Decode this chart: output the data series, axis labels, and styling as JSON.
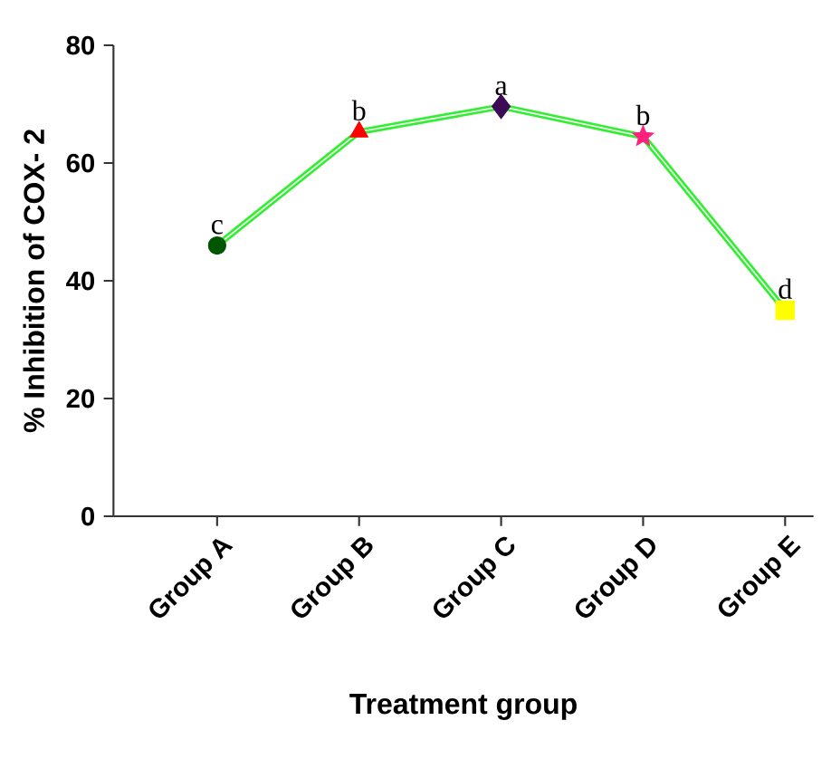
{
  "chart_data": {
    "type": "line",
    "xlabel": "Treatment group",
    "ylabel": "% Inhibition of COX- 2",
    "categories": [
      "Group A",
      "Group B",
      "Group C",
      "Group D",
      "Group E"
    ],
    "series": [
      {
        "type": "line",
        "color": "#33ee33",
        "values": [
          46,
          65.3,
          69.6,
          64.5,
          35
        ]
      },
      {
        "type": "scatter",
        "marker": "circle",
        "color": "#005500",
        "values": [
          46,
          null,
          null,
          null,
          null
        ]
      },
      {
        "type": "scatter",
        "marker": "triangle",
        "color": "#ff0000",
        "values": [
          null,
          65.3,
          null,
          null,
          null
        ]
      },
      {
        "type": "scatter",
        "marker": "diamond",
        "color": "#3d0a55",
        "values": [
          null,
          null,
          69.6,
          null,
          null
        ]
      },
      {
        "type": "scatter",
        "marker": "star",
        "color": "#ff1f7f",
        "values": [
          null,
          null,
          null,
          64.5,
          null
        ]
      },
      {
        "type": "scatter",
        "marker": "square",
        "color": "#ffff00",
        "values": [
          null,
          null,
          null,
          null,
          35
        ]
      }
    ],
    "ylim": [
      0,
      80
    ],
    "yticks": [
      0,
      20,
      40,
      60,
      80
    ],
    "grid": false,
    "annotations": [
      {
        "text": "c",
        "x": "Group A",
        "y": 46
      },
      {
        "text": "b",
        "x": "Group B",
        "y": 65.3
      },
      {
        "text": "a",
        "x": "Group C",
        "y": 69.6
      },
      {
        "text": "b",
        "x": "Group D",
        "y": 64.5
      },
      {
        "text": "d",
        "x": "Group E",
        "y": 35
      }
    ]
  }
}
